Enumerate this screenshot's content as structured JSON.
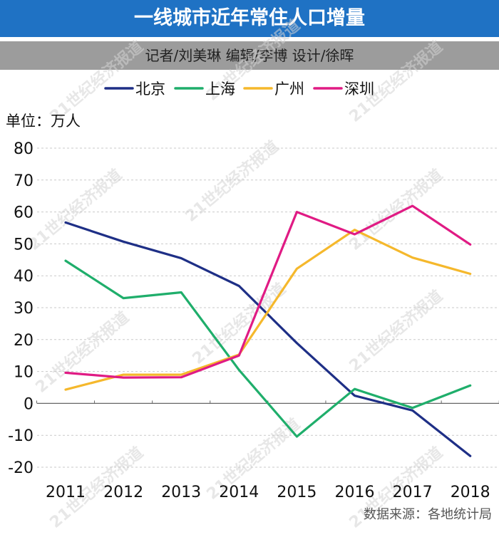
{
  "header": {
    "title": "一线城市近年常住人口增量",
    "credits": "记者/刘美琳 编辑/李博  设计/徐晖"
  },
  "source": "数据来源：各地统计局",
  "watermark": "21世纪经济报道",
  "colors": {
    "title_bg": "#1f72c4",
    "credit_bg": "#9c9c9c",
    "北京": "#1e2f86",
    "上海": "#1fae6b",
    "广州": "#f5b82c",
    "深圳": "#e01b84"
  },
  "chart_data": {
    "type": "line",
    "ylabel": "单位：万人",
    "categories": [
      "2011",
      "2012",
      "2013",
      "2014",
      "2015",
      "2016",
      "2017",
      "2018"
    ],
    "ylim": [
      -20,
      80
    ],
    "yticks": [
      "80",
      "70",
      "60",
      "50",
      "40",
      "30",
      "20",
      "10",
      "0",
      "-10",
      "-20"
    ],
    "grid": true,
    "legend_position": "top",
    "series": [
      {
        "name": "北京",
        "values": [
          56.7,
          50.7,
          45.5,
          36.8,
          18.9,
          2.4,
          -2.2,
          -16.5
        ]
      },
      {
        "name": "上海",
        "values": [
          44.7,
          33.0,
          34.8,
          10.5,
          -10.4,
          4.5,
          -1.4,
          5.6
        ]
      },
      {
        "name": "广州",
        "values": [
          4.3,
          9.0,
          9.0,
          15.3,
          42.2,
          54.4,
          45.7,
          40.6
        ]
      },
      {
        "name": "深圳",
        "values": [
          9.6,
          8.1,
          8.2,
          15.0,
          60.0,
          53.0,
          61.9,
          49.8
        ]
      }
    ]
  }
}
